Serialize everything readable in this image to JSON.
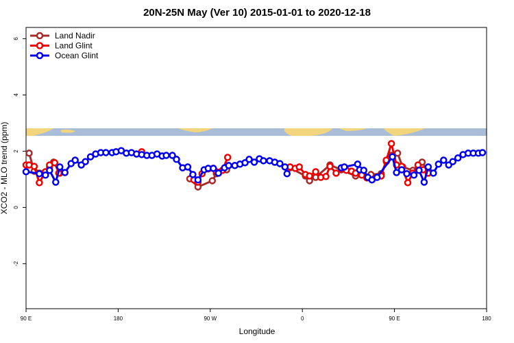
{
  "chart_data": {
    "type": "line",
    "title": "20N-25N May (Ver 10)   2015-01-01 to 2020-12-18",
    "x_label": "Longitude",
    "y_label": "XCO2 - MLO trend (ppm)",
    "xlim": [
      90,
      540
    ],
    "ylim": [
      -3.6,
      6.4
    ],
    "xticks": [
      {
        "value": 90,
        "label": "90 E"
      },
      180,
      {
        "value": 270,
        "label": "90 W"
      },
      {
        "value": 360,
        "label": "0"
      },
      {
        "value": 450,
        "label": "90 E"
      },
      {
        "value": 540,
        "label": "180"
      }
    ],
    "yticks": [
      -2,
      0,
      2,
      4,
      6
    ],
    "legend": "top-left",
    "series": [
      {
        "name": "Land Nadir",
        "color": "#a52a2a",
        "x": [
          93,
          98,
          103,
          108,
          113,
          117,
          123,
          null,
          250,
          258,
          272,
          276,
          282,
          286,
          null,
          348,
          363,
          367,
          373,
          387,
          398,
          412,
          427,
          437,
          442,
          447,
          453,
          458,
          468,
          477,
          483
        ],
        "values": [
          1.93,
          1.29,
          1.22,
          1.24,
          1.44,
          1.61,
          1.22,
          null,
          1.02,
          0.73,
          0.95,
          1.2,
          1.32,
          1.34,
          null,
          1.41,
          1.12,
          0.95,
          1.07,
          1.51,
          1.34,
          1.12,
          1.17,
          1.2,
          1.63,
          1.85,
          1.93,
          1.44,
          1.32,
          1.61,
          1.27
        ]
      },
      {
        "name": "Land Glint",
        "color": "#ee0000",
        "x": [
          90,
          93,
          98,
          103,
          109,
          113,
          118,
          122,
          null,
          203,
          null,
          254,
          258,
          262,
          268,
          273,
          276,
          282,
          287,
          null,
          348,
          353,
          357,
          363,
          367,
          373,
          378,
          383,
          387,
          393,
          398,
          403,
          408,
          412,
          418,
          423,
          437,
          442,
          447,
          452,
          457,
          463,
          468,
          473,
          478,
          483
        ],
        "values": [
          1.51,
          1.51,
          1.46,
          0.88,
          1.27,
          1.51,
          1.59,
          1.22,
          null,
          1.98,
          null,
          0.98,
          0.9,
          1.2,
          1.37,
          1.39,
          1.27,
          1.32,
          1.78,
          null,
          1.44,
          1.39,
          1.44,
          1.17,
          1.12,
          1.27,
          1.07,
          1.1,
          1.46,
          1.22,
          1.37,
          1.32,
          1.29,
          1.22,
          1.15,
          1.05,
          1.12,
          1.68,
          2.27,
          1.51,
          1.46,
          0.88,
          1.22,
          1.51,
          1.34,
          1.22
        ]
      },
      {
        "name": "Ocean Glint",
        "color": "#0000ee",
        "x": [
          90,
          103,
          109,
          113,
          119,
          123,
          128,
          134,
          138,
          144,
          148,
          153,
          158,
          163,
          168,
          174,
          178,
          183,
          188,
          193,
          198,
          203,
          208,
          213,
          218,
          223,
          227,
          233,
          237,
          243,
          248,
          253,
          258,
          264,
          268,
          273,
          278,
          284,
          288,
          294,
          299,
          304,
          308,
          313,
          318,
          322,
          328,
          333,
          338,
          343,
          345,
          null,
          398,
          401,
          414,
          416,
          420,
          424,
          428,
          433,
          448,
          452,
          457,
          462,
          469,
          474,
          479,
          483,
          488,
          493,
          498,
          503,
          507,
          512,
          517,
          522,
          527,
          532,
          536
        ],
        "values": [
          1.27,
          1.2,
          1.15,
          1.32,
          0.9,
          1.44,
          1.24,
          1.56,
          1.68,
          1.51,
          1.63,
          1.8,
          1.9,
          1.95,
          1.95,
          1.95,
          1.98,
          2.02,
          1.93,
          1.95,
          1.9,
          1.88,
          1.85,
          1.85,
          1.9,
          1.83,
          1.85,
          1.85,
          1.71,
          1.41,
          1.44,
          1.17,
          0.98,
          1.34,
          1.39,
          1.39,
          1.22,
          1.41,
          1.49,
          1.49,
          1.54,
          1.59,
          1.71,
          1.61,
          1.73,
          1.66,
          1.66,
          1.61,
          1.56,
          1.44,
          1.2,
          null,
          1.41,
          1.44,
          1.54,
          1.34,
          1.32,
          1.07,
          0.98,
          1.07,
          1.8,
          1.24,
          1.34,
          1.2,
          1.15,
          1.32,
          0.9,
          1.44,
          1.22,
          1.54,
          1.68,
          1.51,
          1.63,
          1.76,
          1.88,
          1.93,
          1.93,
          1.93,
          1.95
        ]
      }
    ]
  }
}
